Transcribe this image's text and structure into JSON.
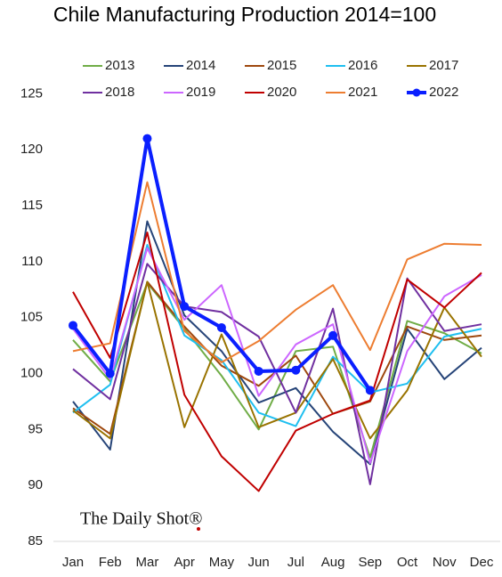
{
  "chart_data": {
    "type": "line",
    "title": "Chile Manufacturing Production 2014=100",
    "watermark": "The Daily Shot®",
    "categories": [
      "Jan",
      "Feb",
      "Mar",
      "Apr",
      "May",
      "Jun",
      "Jul",
      "Aug",
      "Sep",
      "Oct",
      "Nov",
      "Dec"
    ],
    "ylim": [
      85,
      129.4
    ],
    "yticks": [
      85,
      90,
      95,
      100,
      105,
      110,
      115,
      120,
      125
    ],
    "grid": false,
    "legend": "top",
    "series": [
      {
        "name": "2013",
        "color": "#70ad47",
        "values": [
          103,
          99.3,
          108.1,
          104,
          99.8,
          95,
          102,
          102.4,
          92.5,
          104.7,
          103.6,
          101.8
        ]
      },
      {
        "name": "2014",
        "color": "#264478",
        "values": [
          97.5,
          93.2,
          113.6,
          105.2,
          102,
          97.4,
          98.7,
          94.8,
          91.9,
          104,
          99.5,
          102.3
        ]
      },
      {
        "name": "2015",
        "color": "#9e480e",
        "values": [
          96.9,
          94.6,
          108.2,
          104.2,
          100.7,
          98.9,
          101.6,
          96.4,
          97.5,
          104.2,
          103,
          103.4
        ]
      },
      {
        "name": "2016",
        "color": "#1fbff0",
        "values": [
          96.5,
          99,
          111.5,
          103.4,
          101.2,
          96.5,
          95.3,
          101.5,
          98.3,
          99.1,
          103.3,
          104
        ]
      },
      {
        "name": "2017",
        "color": "#997300",
        "values": [
          96.7,
          94.2,
          108.2,
          95.2,
          103.5,
          95.2,
          96.5,
          101.3,
          94.2,
          98.5,
          105.9,
          101.5
        ]
      },
      {
        "name": "2018",
        "color": "#7030a0",
        "values": [
          100.4,
          97.7,
          109.8,
          106,
          105.5,
          103.3,
          96.5,
          105.8,
          90.1,
          108.5,
          103.8,
          104.4
        ]
      },
      {
        "name": "2019",
        "color": "#cc66ff",
        "values": [
          104,
          99.5,
          111.2,
          104.8,
          107.9,
          98,
          102.6,
          104.4,
          92,
          102,
          106.9,
          108.8
        ]
      },
      {
        "name": "2020",
        "color": "#c00000",
        "values": [
          107.3,
          101.4,
          112.6,
          98.1,
          92.6,
          89.5,
          94.9,
          96.4,
          97.6,
          108.4,
          105.9,
          109
        ]
      },
      {
        "name": "2021",
        "color": "#ed7d31",
        "values": [
          102,
          102.7,
          117.1,
          103.8,
          101,
          102.9,
          105.7,
          107.9,
          102.1,
          110.2,
          111.6,
          111.5
        ]
      },
      {
        "name": "2022",
        "color": "#0a1fff",
        "markers": true,
        "values": [
          104.3,
          100,
          121,
          106,
          104.1,
          100.2,
          100.3,
          103.4,
          98.5,
          null,
          null,
          null
        ]
      }
    ]
  }
}
